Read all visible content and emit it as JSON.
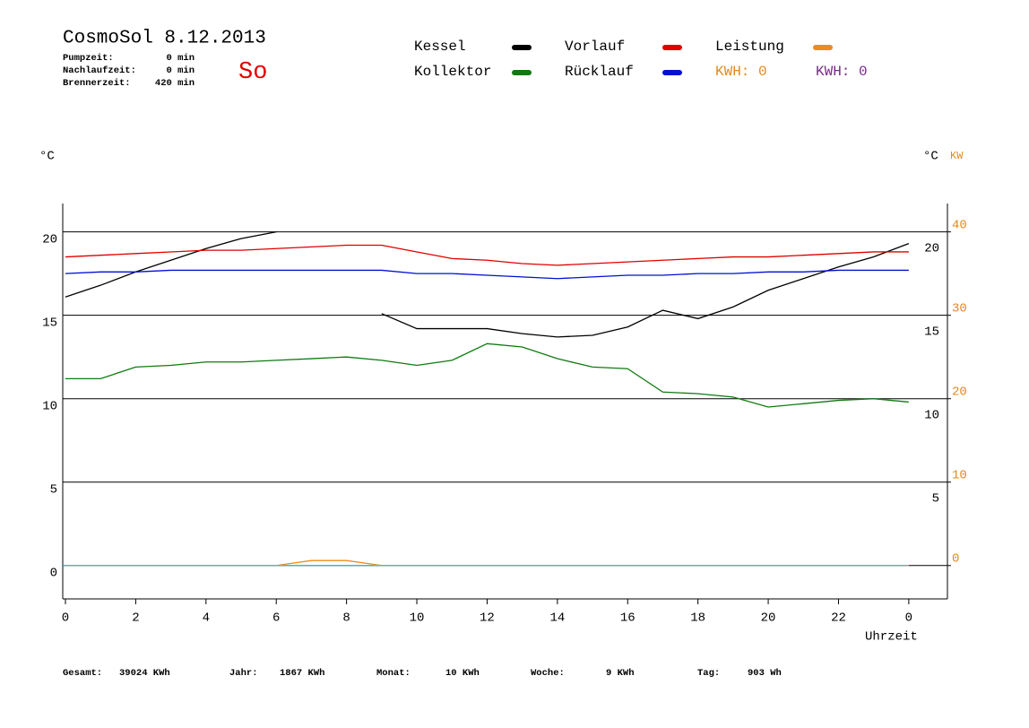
{
  "header": {
    "title": "CosmoSol 8.12.2013",
    "day": "So",
    "info": [
      [
        "Pumpzeit:",
        "0 min"
      ],
      [
        "Nachlaufzeit:",
        "0 min"
      ],
      [
        "Brennerzeit:",
        "420 min"
      ]
    ]
  },
  "chart_data": {
    "type": "line",
    "y_unit": "°C",
    "y2_unit_left": "°C",
    "y2_unit": "KW",
    "xlabel": "Uhrzeit",
    "x": [
      0,
      1,
      2,
      3,
      4,
      5,
      6,
      7,
      8,
      9,
      10,
      11,
      12,
      13,
      14,
      15,
      16,
      17,
      18,
      19,
      20,
      21,
      22,
      23,
      24
    ],
    "xlim": [
      0,
      25.1
    ],
    "xticks": [
      0,
      2,
      4,
      6,
      8,
      10,
      12,
      14,
      16,
      18,
      20,
      22,
      {
        "value": 24,
        "label": "0"
      }
    ],
    "ylim": [
      -2,
      21.7
    ],
    "yticks": [
      0,
      5,
      10,
      15,
      20
    ],
    "y2lim": [
      -4,
      43.4
    ],
    "y2ticks": [
      0,
      10,
      20,
      30,
      40
    ],
    "grid": true,
    "series": [
      {
        "name": "Kessel",
        "color": "#000000",
        "values": [
          16.1,
          16.8,
          17.6,
          18.3,
          19.0,
          19.6,
          20.0,
          null,
          null,
          15.1,
          14.2,
          14.2,
          14.2,
          13.9,
          13.7,
          13.8,
          14.3,
          15.3,
          14.8,
          15.5,
          16.5,
          17.2,
          17.9,
          18.5,
          19.3
        ]
      },
      {
        "name": "Vorlauf",
        "color": "#e00000",
        "values": [
          18.5,
          18.6,
          18.7,
          18.8,
          18.9,
          18.9,
          19.0,
          19.1,
          19.2,
          19.2,
          18.8,
          18.4,
          18.3,
          18.1,
          18.0,
          18.1,
          18.2,
          18.3,
          18.4,
          18.5,
          18.5,
          18.6,
          18.7,
          18.8,
          18.8
        ]
      },
      {
        "name": "Leistung",
        "color": "#f08a1e",
        "axis": "y2",
        "values": [
          0,
          0,
          0,
          0,
          0,
          0,
          0,
          0.6,
          0.6,
          0,
          0,
          0,
          0,
          0,
          0,
          0,
          0,
          0,
          0,
          0,
          0,
          0,
          0,
          0,
          0
        ]
      },
      {
        "name": "Kollektor",
        "color": "#107a10",
        "values": [
          11.2,
          11.2,
          11.9,
          12.0,
          12.2,
          12.2,
          12.3,
          12.4,
          12.5,
          12.3,
          12.0,
          12.3,
          13.3,
          13.1,
          12.4,
          11.9,
          11.8,
          10.4,
          10.3,
          10.1,
          9.5,
          9.7,
          9.9,
          10.0,
          9.8
        ]
      },
      {
        "name": "Rücklauf",
        "color": "#0010d0",
        "values": [
          17.5,
          17.6,
          17.6,
          17.7,
          17.7,
          17.7,
          17.7,
          17.7,
          17.7,
          17.7,
          17.5,
          17.5,
          17.4,
          17.3,
          17.2,
          17.3,
          17.4,
          17.4,
          17.5,
          17.5,
          17.6,
          17.6,
          17.7,
          17.7,
          17.7
        ]
      }
    ],
    "kwh": [
      {
        "text": "KWH: 0",
        "color": "#e08a1e"
      },
      {
        "text": "KWH: 0",
        "color": "#7a2a8a"
      }
    ]
  },
  "footer": [
    [
      "Gesamt:",
      "39024 KWh"
    ],
    [
      "Jahr:",
      "1867 KWh"
    ],
    [
      "Monat:",
      "10 KWh"
    ],
    [
      "Woche:",
      "9 KWh"
    ],
    [
      "Tag:",
      "903 Wh"
    ]
  ]
}
